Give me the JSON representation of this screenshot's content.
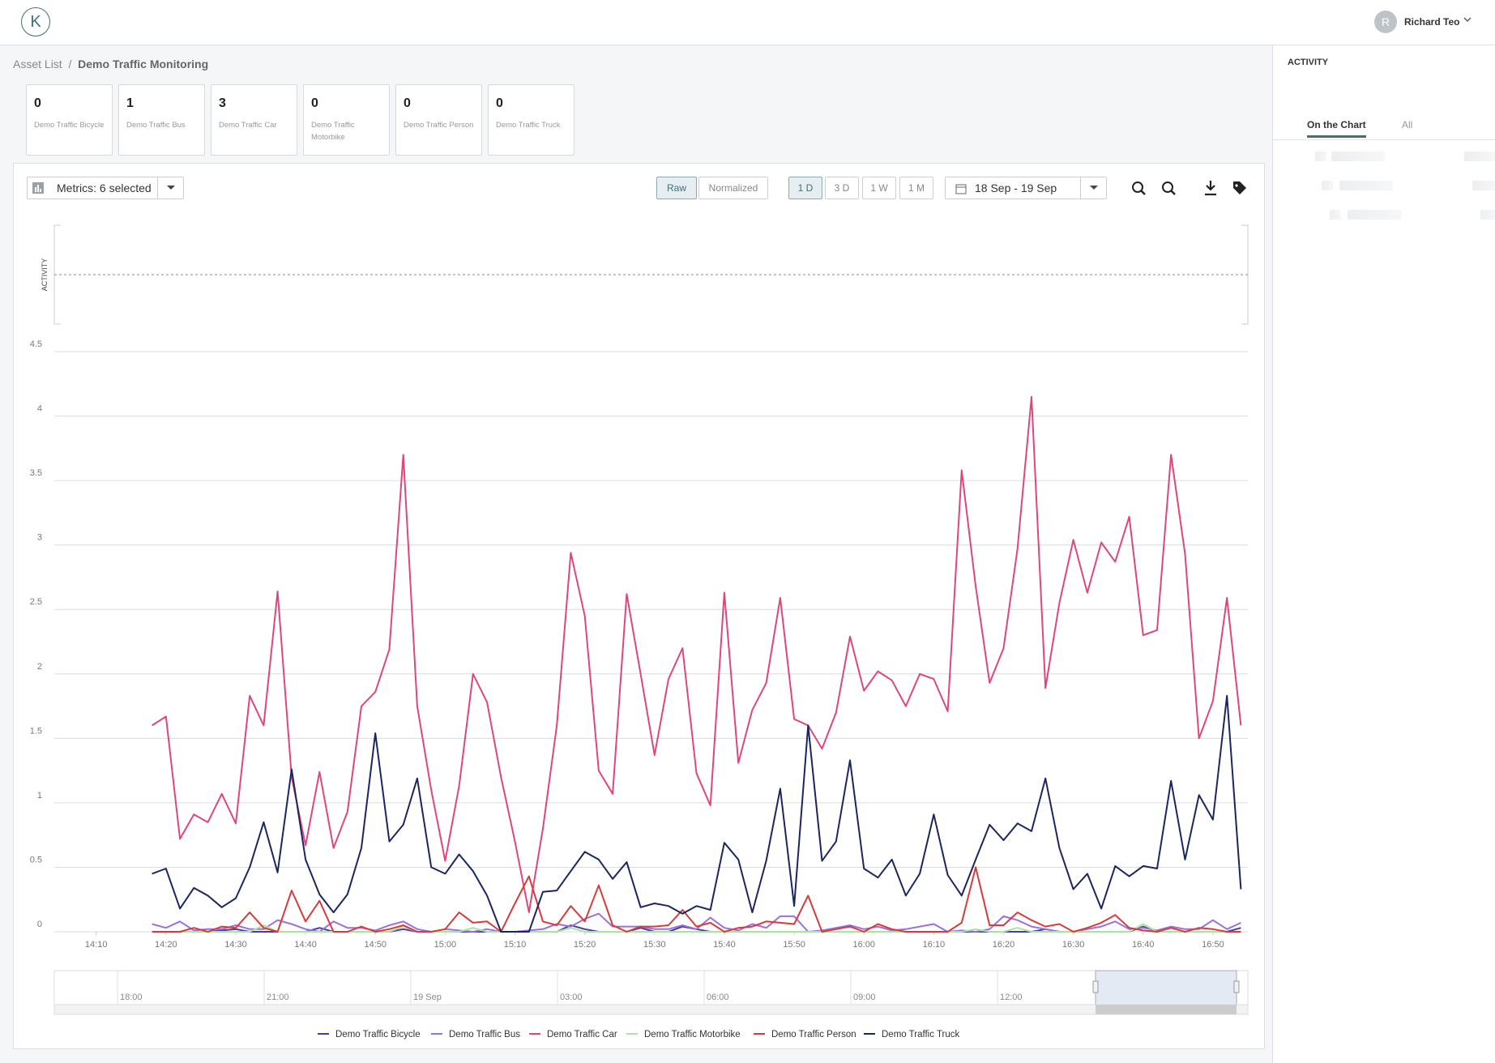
{
  "header": {
    "logo": "K",
    "avatar_initial": "R",
    "user_name": "Richard Teo"
  },
  "breadcrumb": [
    "Asset List",
    "Demo Traffic Monitoring"
  ],
  "cards": [
    {
      "value": 0,
      "label": "Demo Traffic Bicycle"
    },
    {
      "value": 1,
      "label": "Demo Traffic Bus"
    },
    {
      "value": 3,
      "label": "Demo Traffic Car"
    },
    {
      "value": 0,
      "label": "Demo Traffic Motorbike"
    },
    {
      "value": 0,
      "label": "Demo Traffic Person"
    },
    {
      "value": 0,
      "label": "Demo Traffic Truck"
    }
  ],
  "toolbar": {
    "metrics": "Metrics: 6 selected",
    "modes": [
      "Raw",
      "Normalized"
    ],
    "ranges": [
      "1 D",
      "3 D",
      "1 W",
      "1 M"
    ],
    "date_range": "18 Sep - 19 Sep"
  },
  "activity_panel": {
    "title": "ACTIVITY",
    "tabs": [
      "On the Chart",
      "All"
    ]
  },
  "chart_data": {
    "type": "line",
    "activity_label": "ACTIVITY",
    "x": [
      "14:18",
      "14:20",
      "14:22",
      "14:24",
      "14:26",
      "14:28",
      "14:30",
      "14:32",
      "14:34",
      "14:36",
      "14:38",
      "14:40",
      "14:42",
      "14:44",
      "14:46",
      "14:48",
      "14:50",
      "14:52",
      "14:54",
      "14:56",
      "14:58",
      "15:00",
      "15:02",
      "15:04",
      "15:06",
      "15:08",
      "15:10",
      "15:12",
      "15:14",
      "15:16",
      "15:18",
      "15:20",
      "15:22",
      "15:24",
      "15:26",
      "15:28",
      "15:30",
      "15:32",
      "15:34",
      "15:36",
      "15:38",
      "15:40",
      "15:42",
      "15:44",
      "15:46",
      "15:48",
      "15:50",
      "15:52",
      "15:54",
      "15:56",
      "15:58",
      "16:00",
      "16:02",
      "16:04",
      "16:06",
      "16:08",
      "16:10",
      "16:12",
      "16:14",
      "16:16",
      "16:18",
      "16:20",
      "16:22",
      "16:24",
      "16:26",
      "16:28",
      "16:30",
      "16:32",
      "16:34",
      "16:36",
      "16:38",
      "16:40",
      "16:42",
      "16:44",
      "16:46",
      "16:48",
      "16:50",
      "16:52",
      "16:54"
    ],
    "xlim": [
      "14:04",
      "16:55"
    ],
    "xticks": [
      "14:10",
      "14:20",
      "14:30",
      "14:40",
      "14:50",
      "15:00",
      "15:10",
      "15:20",
      "15:30",
      "15:40",
      "15:50",
      "16:00",
      "16:10",
      "16:20",
      "16:30",
      "16:40",
      "16:50"
    ],
    "ylim": [
      0,
      4.5
    ],
    "yticks": [
      0,
      0.5,
      1,
      1.5,
      2,
      2.5,
      3,
      3.5,
      4,
      4.5
    ],
    "grid": true,
    "navigator_labels": [
      "18:00",
      "21:00",
      "19 Sep",
      "03:00",
      "06:00",
      "09:00",
      "12:00"
    ],
    "series": [
      {
        "name": "Demo Traffic Bicycle",
        "color": "#4b3aa6",
        "values": [
          0,
          0,
          0,
          0,
          0,
          0.01,
          0.02,
          0,
          0,
          0,
          0,
          0,
          0.03,
          0,
          0,
          0,
          0,
          0,
          0.02,
          0,
          0,
          0,
          0,
          0,
          0,
          0,
          0,
          0,
          0,
          0,
          0.05,
          0.02,
          0,
          0,
          0,
          0.03,
          0,
          0,
          0.04,
          0.02,
          0,
          0,
          0,
          0,
          0,
          0,
          0,
          0,
          0,
          0,
          0,
          0,
          0,
          0,
          0,
          0,
          0,
          0,
          0,
          0,
          0,
          0,
          0,
          0,
          0.02,
          0,
          0,
          0,
          0,
          0,
          0,
          0.04,
          0,
          0,
          0,
          0,
          0,
          0,
          0.03
        ]
      },
      {
        "name": "Demo Traffic Bus",
        "color": "#9b6fe0",
        "values": [
          0.06,
          0.03,
          0.08,
          0.01,
          0.02,
          0.02,
          0.05,
          0.02,
          0.02,
          0.09,
          0.06,
          0.02,
          0,
          0.08,
          0.03,
          0.03,
          0.01,
          0.05,
          0.08,
          0.02,
          0,
          0.02,
          0.01,
          0,
          0.02,
          0,
          0,
          0.01,
          0.02,
          0.06,
          0.04,
          0.1,
          0.14,
          0.04,
          0.04,
          0.04,
          0.02,
          0.02,
          0.05,
          0.02,
          0.11,
          0.03,
          0.01,
          0.06,
          0.03,
          0.12,
          0.12,
          0,
          0.01,
          0.03,
          0.05,
          0.02,
          0.04,
          0.01,
          0.02,
          0.04,
          0.06,
          0,
          0.01,
          0,
          0.02,
          0.12,
          0.09,
          0.04,
          0.02,
          0,
          0,
          0.02,
          0.04,
          0.08,
          0.02,
          0.03,
          0.01,
          0.04,
          0.02,
          0.02,
          0.09,
          0.02,
          0.07
        ]
      },
      {
        "name": "Demo Traffic Car",
        "color": "#e0457b",
        "values": [
          1.6,
          1.67,
          0.72,
          0.91,
          0.85,
          1.07,
          0.84,
          1.83,
          1.6,
          2.64,
          1.2,
          0.67,
          1.24,
          0.65,
          0.93,
          1.75,
          1.86,
          2.19,
          3.7,
          1.75,
          1.1,
          0.55,
          1.13,
          2.0,
          1.78,
          1.2,
          0.7,
          0.15,
          0.8,
          1.6,
          2.94,
          2.45,
          1.25,
          1.07,
          2.62,
          2.0,
          1.37,
          1.96,
          2.2,
          1.23,
          0.98,
          2.63,
          1.31,
          1.72,
          1.93,
          2.59,
          1.65,
          1.6,
          1.42,
          1.7,
          2.29,
          1.87,
          2.02,
          1.95,
          1.75,
          2.0,
          1.96,
          1.71,
          3.58,
          2.68,
          1.93,
          2.2,
          2.97,
          4.15,
          1.89,
          2.55,
          3.04,
          2.63,
          3.02,
          2.87,
          3.22,
          2.3,
          2.34,
          3.7,
          2.93,
          1.5,
          1.79,
          2.59,
          1.6
        ]
      },
      {
        "name": "Demo Traffic Motorbike",
        "color": "#a8e6a0",
        "values": [
          0,
          0,
          0,
          0,
          0,
          0,
          0,
          0,
          0.05,
          0,
          0,
          0,
          0,
          0,
          0,
          0,
          0,
          0,
          0.04,
          0,
          0,
          0,
          0,
          0.03,
          0,
          0,
          0,
          0,
          0,
          0,
          0.03,
          0,
          0,
          0,
          0,
          0,
          0,
          0,
          0,
          0,
          0,
          0,
          0,
          0,
          0,
          0,
          0,
          0,
          0,
          0,
          0,
          0,
          0,
          0,
          0,
          0,
          0,
          0,
          0,
          0.02,
          0,
          0,
          0.03,
          0,
          0,
          0,
          0,
          0,
          0,
          0,
          0,
          0.06,
          0,
          0,
          0,
          0,
          0,
          0,
          0
        ]
      },
      {
        "name": "Demo Traffic Person",
        "color": "#d93a3a",
        "values": [
          0,
          0,
          0,
          0.03,
          0,
          0.04,
          0.03,
          0.15,
          0.03,
          0,
          0.32,
          0.08,
          0.24,
          0,
          0,
          0.04,
          0,
          0.02,
          0.05,
          0,
          0,
          0.02,
          0.15,
          0.07,
          0.08,
          0,
          0.22,
          0.43,
          0.08,
          0.05,
          0.2,
          0.08,
          0.36,
          0.05,
          0,
          0.04,
          0.04,
          0.05,
          0.17,
          0.04,
          0.07,
          0,
          0.03,
          0.04,
          0.08,
          0.07,
          0.06,
          0.28,
          0,
          0.02,
          0.04,
          0,
          0.06,
          0.02,
          0,
          0,
          0,
          0,
          0.07,
          0.5,
          0.05,
          0.05,
          0.15,
          0.09,
          0.04,
          0.06,
          0,
          0.03,
          0.07,
          0.13,
          0.03,
          0.01,
          0,
          0.03,
          0,
          0.03,
          0.02,
          0,
          0
        ]
      },
      {
        "name": "Demo Traffic Truck",
        "color": "#1a2660",
        "values": [
          0.45,
          0.49,
          0.18,
          0.34,
          0.28,
          0.19,
          0.26,
          0.5,
          0.85,
          0.46,
          1.26,
          0.56,
          0.29,
          0.15,
          0.29,
          0.65,
          1.54,
          0.7,
          0.83,
          1.19,
          0.5,
          0.45,
          0.6,
          0.47,
          0.28,
          0,
          0,
          0,
          0.31,
          0.32,
          0.47,
          0.62,
          0.56,
          0.41,
          0.54,
          0.19,
          0.22,
          0.2,
          0.14,
          0.2,
          0.17,
          0.69,
          0.56,
          0.15,
          0.55,
          1.11,
          0.2,
          1.6,
          0.55,
          0.7,
          1.33,
          0.49,
          0.42,
          0.56,
          0.28,
          0.45,
          0.91,
          0.44,
          0.28,
          0.56,
          0.83,
          0.71,
          0.84,
          0.78,
          1.19,
          0.65,
          0.33,
          0.45,
          0.18,
          0.51,
          0.43,
          0.51,
          0.49,
          1.17,
          0.56,
          1.06,
          0.87,
          1.83,
          0.33
        ]
      }
    ]
  }
}
